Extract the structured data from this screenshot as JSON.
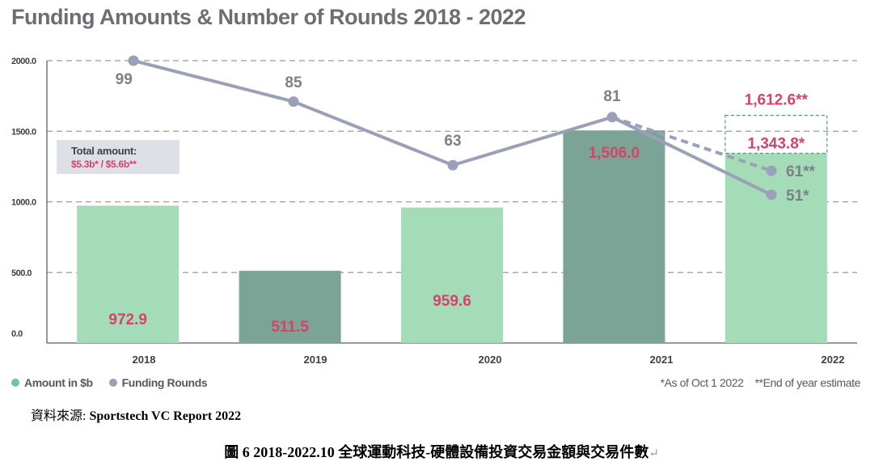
{
  "title": "Funding Amounts & Number of Rounds 2018 - 2022",
  "total_box": {
    "label": "Total amount:",
    "value": "$5.3b* / $5.6b**"
  },
  "legend": {
    "amount": "Amount in $b",
    "rounds": "Funding Rounds"
  },
  "footnotes": {
    "as_of": "*As of Oct 1 2022",
    "estimate": "**End of year estimate"
  },
  "source": {
    "prefix": "資料來源: ",
    "name": "Sportstech VC Report 2022"
  },
  "caption": {
    "text": "圖 6 2018-2022.10 全球運動科技-硬體設備投資交易金額與交易件數",
    "return_mark": "↵"
  },
  "colors": {
    "bar_light": "#a5dcb8",
    "bar_dark": "#7ba497",
    "line": "#9aa1b7",
    "label_pink": "#d6426b",
    "label_gray": "#7c8087",
    "grid": "#9a9a9a",
    "estimate_box": "#4e9a70"
  },
  "chart_data": {
    "type": "bar",
    "categories": [
      "2018",
      "2019",
      "2020",
      "2021",
      "2022"
    ],
    "ylim": [
      0,
      2000
    ],
    "yticks": [
      "0.0",
      "500.0",
      "1000.0",
      "1500.0",
      "2000.0"
    ],
    "grid": "horizontal dashed",
    "legend_position": "bottom-left",
    "series": [
      {
        "name": "Amount in $b",
        "type": "bar",
        "values": [
          972.9,
          511.5,
          959.6,
          1506.0,
          1343.8
        ],
        "labels": [
          "972.9",
          "511.5",
          "959.6",
          "1,506.0",
          "1,343.8*"
        ],
        "shades": [
          "light",
          "dark",
          "light",
          "dark",
          "light"
        ]
      },
      {
        "name": "Funding Rounds",
        "type": "line",
        "values": [
          99,
          85,
          63,
          81,
          51
        ],
        "labels": [
          "99",
          "85",
          "63",
          "81",
          "51*"
        ],
        "plot_y": [
          2000,
          1710,
          1260,
          1600,
          1050
        ]
      }
    ],
    "estimate": {
      "amount_value": 1612.6,
      "amount_label": "1,612.6**",
      "rounds_value": 61,
      "rounds_label": "61**",
      "rounds_plot_y": 1220
    }
  }
}
